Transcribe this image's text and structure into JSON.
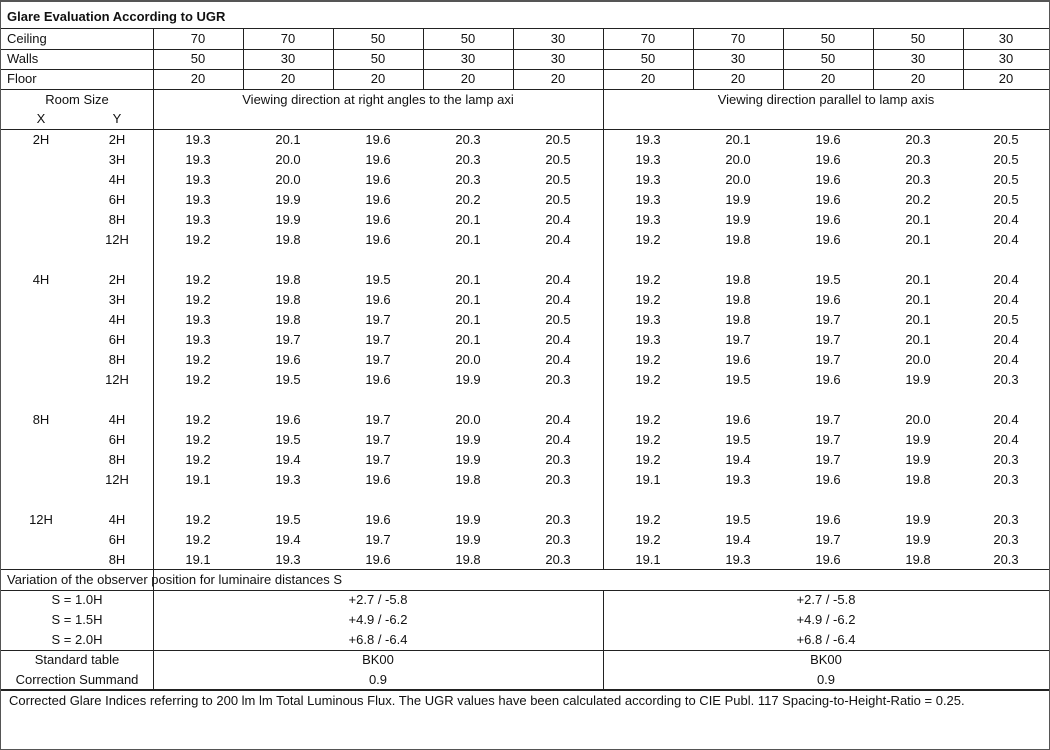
{
  "title": "Glare Evaluation According to UGR",
  "reflectances": [
    {
      "label": "Ceiling",
      "values": [
        "70",
        "70",
        "50",
        "50",
        "30",
        "70",
        "70",
        "50",
        "50",
        "30"
      ]
    },
    {
      "label": "Walls",
      "values": [
        "50",
        "30",
        "50",
        "30",
        "30",
        "50",
        "30",
        "50",
        "30",
        "30"
      ]
    },
    {
      "label": "Floor",
      "values": [
        "20",
        "20",
        "20",
        "20",
        "20",
        "20",
        "20",
        "20",
        "20",
        "20"
      ]
    }
  ],
  "header": {
    "room_size": "Room Size",
    "x": "X",
    "y": "Y",
    "left": "Viewing direction at right angles to the lamp axi",
    "right": "Viewing direction parallel to lamp axis"
  },
  "groups": [
    {
      "x": "2H",
      "rows": [
        {
          "y": "2H",
          "left": [
            "19.3",
            "20.1",
            "19.6",
            "20.3",
            "20.5"
          ],
          "right": [
            "19.3",
            "20.1",
            "19.6",
            "20.3",
            "20.5"
          ]
        },
        {
          "y": "3H",
          "left": [
            "19.3",
            "20.0",
            "19.6",
            "20.3",
            "20.5"
          ],
          "right": [
            "19.3",
            "20.0",
            "19.6",
            "20.3",
            "20.5"
          ]
        },
        {
          "y": "4H",
          "left": [
            "19.3",
            "20.0",
            "19.6",
            "20.3",
            "20.5"
          ],
          "right": [
            "19.3",
            "20.0",
            "19.6",
            "20.3",
            "20.5"
          ]
        },
        {
          "y": "6H",
          "left": [
            "19.3",
            "19.9",
            "19.6",
            "20.2",
            "20.5"
          ],
          "right": [
            "19.3",
            "19.9",
            "19.6",
            "20.2",
            "20.5"
          ]
        },
        {
          "y": "8H",
          "left": [
            "19.3",
            "19.9",
            "19.6",
            "20.1",
            "20.4"
          ],
          "right": [
            "19.3",
            "19.9",
            "19.6",
            "20.1",
            "20.4"
          ]
        },
        {
          "y": "12H",
          "left": [
            "19.2",
            "19.8",
            "19.6",
            "20.1",
            "20.4"
          ],
          "right": [
            "19.2",
            "19.8",
            "19.6",
            "20.1",
            "20.4"
          ]
        }
      ]
    },
    {
      "x": "4H",
      "rows": [
        {
          "y": "2H",
          "left": [
            "19.2",
            "19.8",
            "19.5",
            "20.1",
            "20.4"
          ],
          "right": [
            "19.2",
            "19.8",
            "19.5",
            "20.1",
            "20.4"
          ]
        },
        {
          "y": "3H",
          "left": [
            "19.2",
            "19.8",
            "19.6",
            "20.1",
            "20.4"
          ],
          "right": [
            "19.2",
            "19.8",
            "19.6",
            "20.1",
            "20.4"
          ]
        },
        {
          "y": "4H",
          "left": [
            "19.3",
            "19.8",
            "19.7",
            "20.1",
            "20.5"
          ],
          "right": [
            "19.3",
            "19.8",
            "19.7",
            "20.1",
            "20.5"
          ]
        },
        {
          "y": "6H",
          "left": [
            "19.3",
            "19.7",
            "19.7",
            "20.1",
            "20.4"
          ],
          "right": [
            "19.3",
            "19.7",
            "19.7",
            "20.1",
            "20.4"
          ]
        },
        {
          "y": "8H",
          "left": [
            "19.2",
            "19.6",
            "19.7",
            "20.0",
            "20.4"
          ],
          "right": [
            "19.2",
            "19.6",
            "19.7",
            "20.0",
            "20.4"
          ]
        },
        {
          "y": "12H",
          "left": [
            "19.2",
            "19.5",
            "19.6",
            "19.9",
            "20.3"
          ],
          "right": [
            "19.2",
            "19.5",
            "19.6",
            "19.9",
            "20.3"
          ]
        }
      ]
    },
    {
      "x": "8H",
      "rows": [
        {
          "y": "4H",
          "left": [
            "19.2",
            "19.6",
            "19.7",
            "20.0",
            "20.4"
          ],
          "right": [
            "19.2",
            "19.6",
            "19.7",
            "20.0",
            "20.4"
          ]
        },
        {
          "y": "6H",
          "left": [
            "19.2",
            "19.5",
            "19.7",
            "19.9",
            "20.4"
          ],
          "right": [
            "19.2",
            "19.5",
            "19.7",
            "19.9",
            "20.4"
          ]
        },
        {
          "y": "8H",
          "left": [
            "19.2",
            "19.4",
            "19.7",
            "19.9",
            "20.3"
          ],
          "right": [
            "19.2",
            "19.4",
            "19.7",
            "19.9",
            "20.3"
          ]
        },
        {
          "y": "12H",
          "left": [
            "19.1",
            "19.3",
            "19.6",
            "19.8",
            "20.3"
          ],
          "right": [
            "19.1",
            "19.3",
            "19.6",
            "19.8",
            "20.3"
          ]
        }
      ]
    },
    {
      "x": "12H",
      "rows": [
        {
          "y": "4H",
          "left": [
            "19.2",
            "19.5",
            "19.6",
            "19.9",
            "20.3"
          ],
          "right": [
            "19.2",
            "19.5",
            "19.6",
            "19.9",
            "20.3"
          ]
        },
        {
          "y": "6H",
          "left": [
            "19.2",
            "19.4",
            "19.7",
            "19.9",
            "20.3"
          ],
          "right": [
            "19.2",
            "19.4",
            "19.7",
            "19.9",
            "20.3"
          ]
        },
        {
          "y": "8H",
          "left": [
            "19.1",
            "19.3",
            "19.6",
            "19.8",
            "20.3"
          ],
          "right": [
            "19.1",
            "19.3",
            "19.6",
            "19.8",
            "20.3"
          ]
        }
      ]
    }
  ],
  "variation": {
    "title": "Variation of the observer position for luminaire distances S",
    "rows": [
      {
        "label": "S = 1.0H",
        "left": "+2.7 / -5.8",
        "right": "+2.7 / -5.8"
      },
      {
        "label": "S = 1.5H",
        "left": "+4.9 / -6.2",
        "right": "+4.9 / -6.2"
      },
      {
        "label": "S = 2.0H",
        "left": "+6.8 / -6.4",
        "right": "+6.8 / -6.4"
      }
    ]
  },
  "standard": [
    {
      "label": "Standard table",
      "left": "BK00",
      "right": "BK00"
    },
    {
      "label": "Correction Summand",
      "left": "0.9",
      "right": "0.9"
    }
  ],
  "footer": "Corrected Glare Indices referring to 200 lm lm Total Luminous Flux. The UGR values have been calculated according to CIE Publ. 117    Spacing-to-Height-Ratio = 0.25."
}
